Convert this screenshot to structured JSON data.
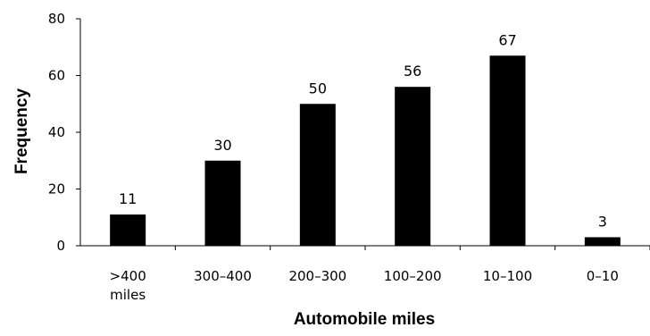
{
  "chart_data": {
    "type": "bar",
    "categories": [
      ">400 miles",
      "300–400",
      "200–300",
      "100–200",
      "10–100",
      "0–10"
    ],
    "category_lines": [
      [
        ">400",
        "miles"
      ],
      [
        "300–400"
      ],
      [
        "200–300"
      ],
      [
        "100–200"
      ],
      [
        "10–100"
      ],
      [
        "0–10"
      ]
    ],
    "values": [
      11,
      30,
      50,
      56,
      67,
      3
    ],
    "data_labels": [
      "11",
      "30",
      "50",
      "56",
      "67",
      "3"
    ],
    "xlabel": "Automobile miles",
    "ylabel": "Frequency",
    "ylim": [
      0,
      80
    ],
    "yticks": [
      0,
      20,
      40,
      60,
      80
    ],
    "grid": false,
    "legend": "none",
    "bar_color": "#000000"
  }
}
